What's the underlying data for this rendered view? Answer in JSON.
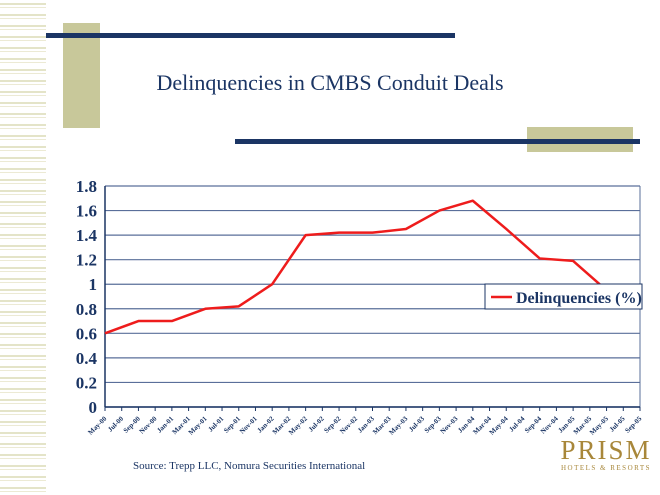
{
  "slide": {
    "title": "Delinquencies in CMBS Conduit Deals",
    "source": "Source: Trepp LLC, Nomura Securities International",
    "logo_text": "PRISM HOTELS & RESORTS",
    "logo_main": "PRISM",
    "logo_sub": "HOTELS & RESORTS"
  },
  "colors": {
    "navy": "#1b3564",
    "accent_block": "#c8c89a",
    "line": "#ee1c1c",
    "logo": "#a8873a"
  },
  "chart_data": {
    "type": "line",
    "title": "",
    "xlabel": "",
    "ylabel": "",
    "ylim": [
      0,
      1.8
    ],
    "yticks": [
      "0",
      "0.2",
      "0.4",
      "0.6",
      "0.8",
      "1",
      "1.2",
      "1.4",
      "1.6",
      "1.8"
    ],
    "grid": true,
    "legend_position": "right",
    "categories": [
      "May-00",
      "Jul-00",
      "Sep-00",
      "Nov-00",
      "Jan-01",
      "Mar-01",
      "May-01",
      "Jul-01",
      "Sep-01",
      "Nov-01",
      "Jan-02",
      "Mar-02",
      "May-02",
      "Jul-02",
      "Sep-02",
      "Nov-02",
      "Jan-03",
      "Mar-03",
      "May-03",
      "Jul-03",
      "Sep-03",
      "Nov-03",
      "Jan-04",
      "Mar-04",
      "May-04",
      "Jul-04",
      "Sep-04",
      "Nov-04",
      "Jan-05",
      "Mar-05",
      "May-05",
      "Jul-05",
      "Sep-05"
    ],
    "series": [
      {
        "name": "Delinquencies (%)",
        "values": [
          0.6,
          null,
          0.7,
          null,
          0.7,
          null,
          0.8,
          null,
          0.82,
          null,
          1.0,
          null,
          1.4,
          null,
          1.42,
          null,
          1.42,
          null,
          1.45,
          null,
          1.6,
          null,
          1.68,
          null,
          1.45,
          null,
          1.21,
          null,
          1.19,
          null,
          0.95,
          null,
          null
        ]
      }
    ]
  }
}
